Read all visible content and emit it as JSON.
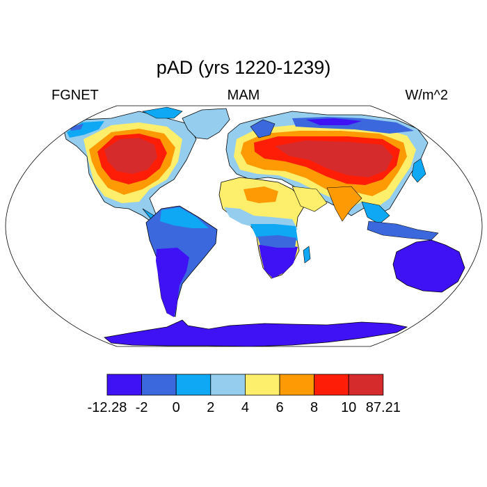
{
  "title": "pAD (yrs 1220-1239)",
  "left_label": "FGNET",
  "center_label": "MAM",
  "right_label": "W/m^2",
  "colorbar": {
    "colors": [
      "#3f11f5",
      "#3c68dd",
      "#0ea8f4",
      "#94cdee",
      "#fdef6b",
      "#fd9a04",
      "#fe1d06",
      "#d52b2c"
    ],
    "labels": [
      "-12.28",
      "-2",
      "0",
      "2",
      "4",
      "6",
      "8",
      "10",
      "87.21"
    ]
  },
  "map": {
    "projection": "Robinson",
    "ocean_color": "#ffffff",
    "outline_color": "#000000"
  }
}
